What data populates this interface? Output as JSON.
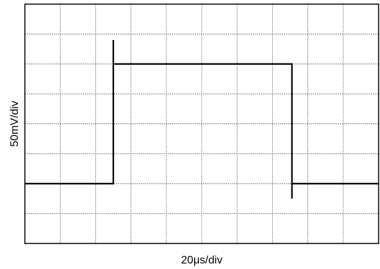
{
  "chart_data": {
    "type": "line",
    "title": "",
    "xlabel": "20μs/div",
    "ylabel": "50mV/div",
    "grid": true,
    "divisions": {
      "x": 10,
      "y": 8
    },
    "xlim": [
      0,
      10
    ],
    "ylim": [
      0,
      8
    ],
    "x_unit": "div",
    "y_unit": "div",
    "series": [
      {
        "points": [
          {
            "x": 0,
            "y": 2
          },
          {
            "x": 2.5,
            "y": 2
          },
          {
            "x": 2.5,
            "y": 6.8
          },
          {
            "x": 2.5,
            "y": 6
          },
          {
            "x": 7.55,
            "y": 6
          },
          {
            "x": 7.55,
            "y": 1.5
          },
          {
            "x": 7.55,
            "y": 2
          },
          {
            "x": 10,
            "y": 2
          }
        ]
      }
    ],
    "colors": {
      "trace": "#000000",
      "grid": "#555555",
      "frame": "#000000",
      "background": "#ffffff"
    }
  }
}
